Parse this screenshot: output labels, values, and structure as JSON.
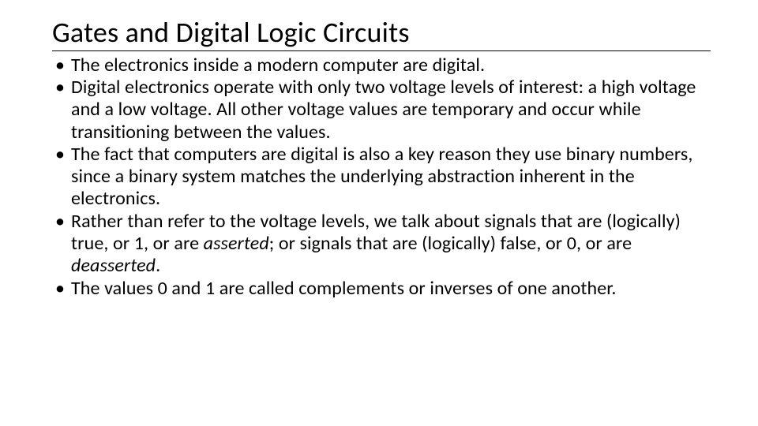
{
  "slide": {
    "title": "Gates and Digital Logic Circuits",
    "bullets": [
      {
        "segments": [
          {
            "text": "The electronics inside a modern computer are digital.",
            "italic": false
          }
        ]
      },
      {
        "segments": [
          {
            "text": "Digital electronics operate with only two voltage levels of interest: a high voltage and a low voltage.  All other voltage values are temporary and occur while transitioning between the values.",
            "italic": false
          }
        ]
      },
      {
        "segments": [
          {
            "text": "The fact that computers are digital is also a key reason they use binary numbers, since a binary system matches the underlying abstraction inherent in the electronics.",
            "italic": false
          }
        ]
      },
      {
        "segments": [
          {
            "text": "Rather than refer to the voltage levels, we talk about signals that are (logically) true, or 1, or are ",
            "italic": false
          },
          {
            "text": "asserted",
            "italic": true
          },
          {
            "text": "; or signals that are (logically) false, or 0, or are ",
            "italic": false
          },
          {
            "text": "deasserted",
            "italic": true
          },
          {
            "text": ".",
            "italic": false
          }
        ]
      },
      {
        "segments": [
          {
            "text": "The values 0 and 1 are called complements or inverses of one another.",
            "italic": false
          }
        ]
      }
    ],
    "style": {
      "background_color": "#ffffff",
      "text_color": "#000000",
      "title_fontsize": 36,
      "title_underline_color": "#000000",
      "bullet_fontsize": 24,
      "font_family": "Calibri"
    }
  }
}
